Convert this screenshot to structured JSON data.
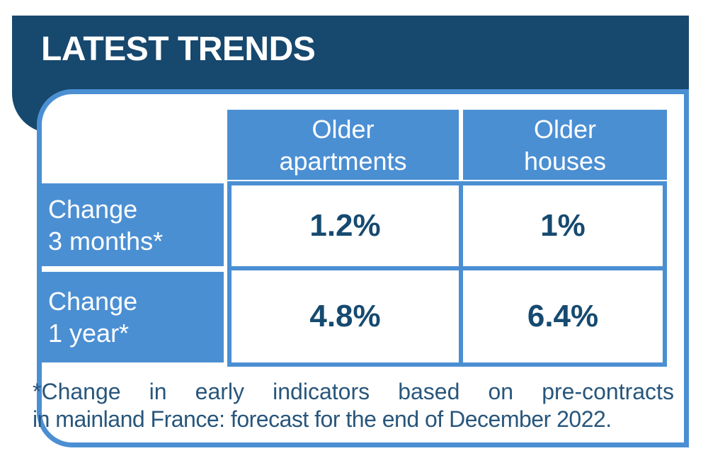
{
  "colors": {
    "navy": "#17486e",
    "blue": "#4b8fd3",
    "value_text": "#164a70",
    "footnote_text": "#28567c"
  },
  "header": {
    "title": "LATEST TRENDS"
  },
  "table": {
    "col_headers": [
      {
        "line1": "Older",
        "line2": "apartments"
      },
      {
        "line1": "Older",
        "line2": "houses"
      }
    ],
    "row_labels": [
      {
        "line1": "Change",
        "line2": "3 months*"
      },
      {
        "line1": "Change",
        "line2": "1 year*"
      }
    ],
    "values": [
      [
        "1.2%",
        "1%"
      ],
      [
        "4.8%",
        "6.4%"
      ]
    ]
  },
  "footnote": {
    "line1_words": [
      "*Change",
      "in",
      "early",
      "indicators",
      "based",
      "on",
      "pre-contracts"
    ],
    "line2": "in mainland France: forecast for the end of December 2022."
  },
  "chart_data": {
    "type": "table",
    "title": "LATEST TRENDS",
    "columns": [
      "",
      "Older apartments",
      "Older houses"
    ],
    "rows": [
      {
        "label": "Change 3 months*",
        "older_apartments": "1.2%",
        "older_houses": "1%"
      },
      {
        "label": "Change 1 year*",
        "older_apartments": "4.8%",
        "older_houses": "6.4%"
      }
    ],
    "footnote": "*Change in early indicators based on pre-contracts in mainland France: forecast for the end of December 2022."
  }
}
